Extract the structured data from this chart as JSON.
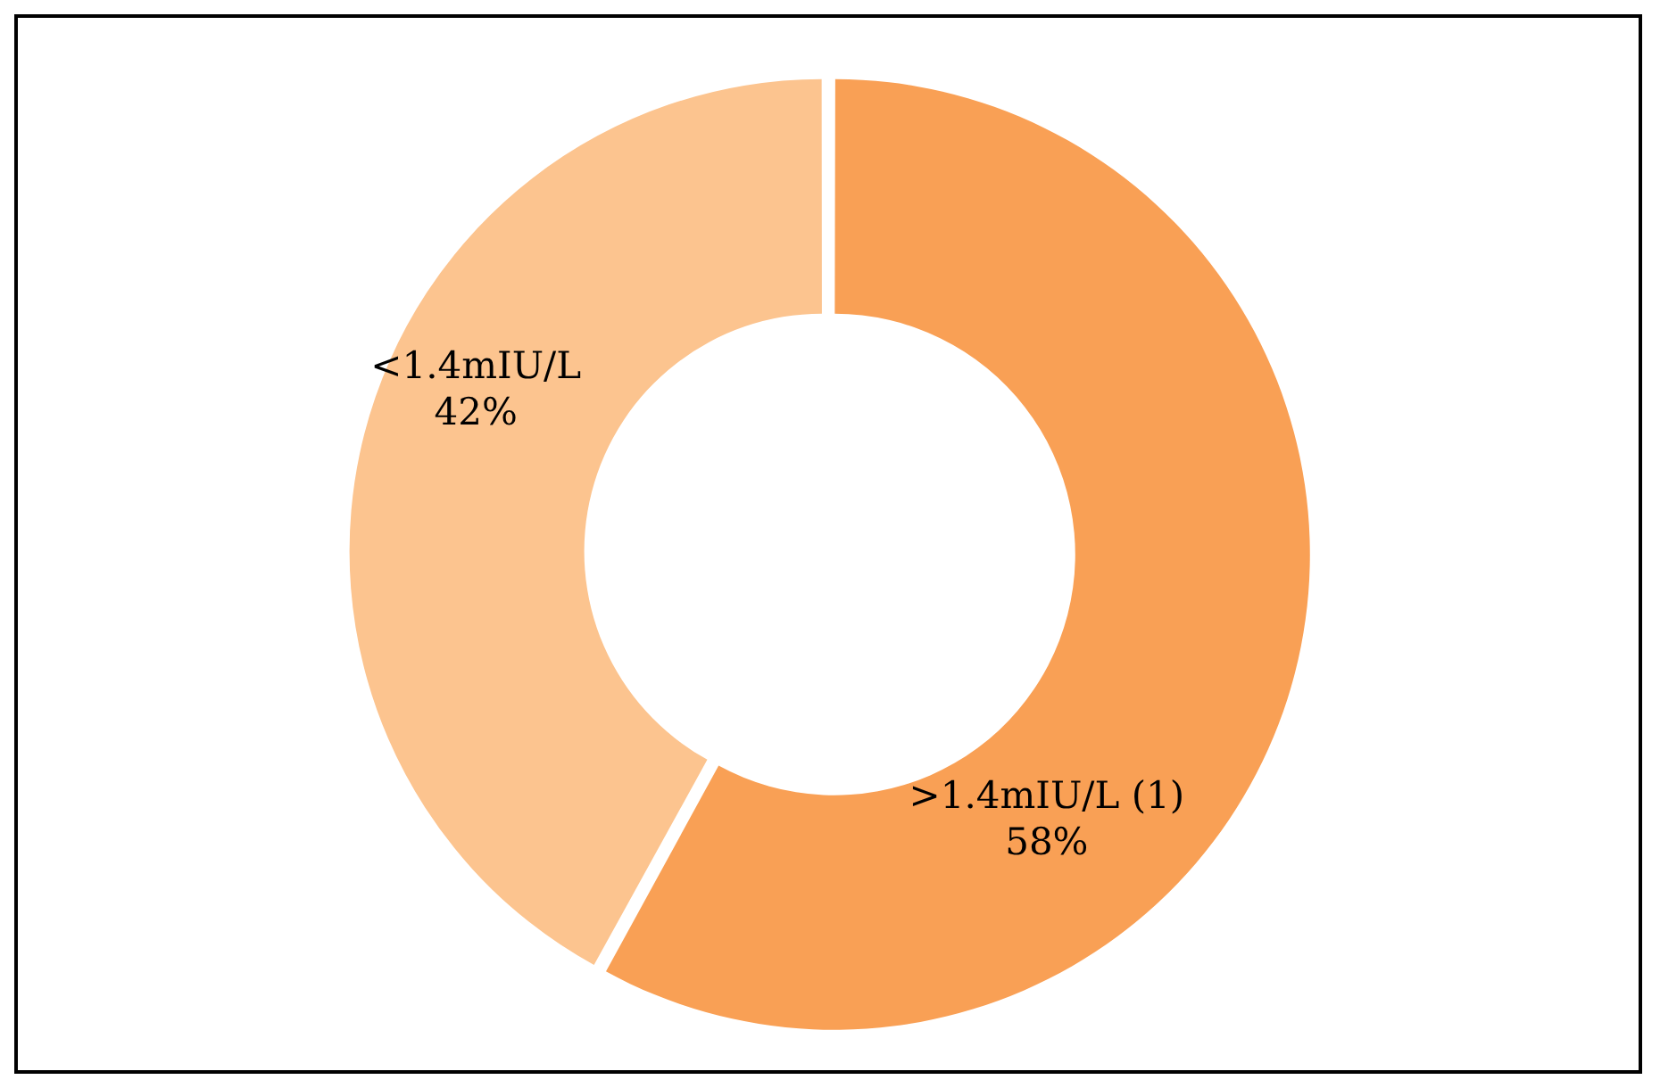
{
  "chart_data": {
    "type": "donut",
    "categories": [
      ">1.4mIU/L (1)",
      "<1.4mIU/L"
    ],
    "values": [
      58,
      42
    ],
    "colors": [
      "#f9a055",
      "#fcc48f"
    ],
    "value_labels": [
      "58%",
      "42%"
    ],
    "legend": false
  }
}
